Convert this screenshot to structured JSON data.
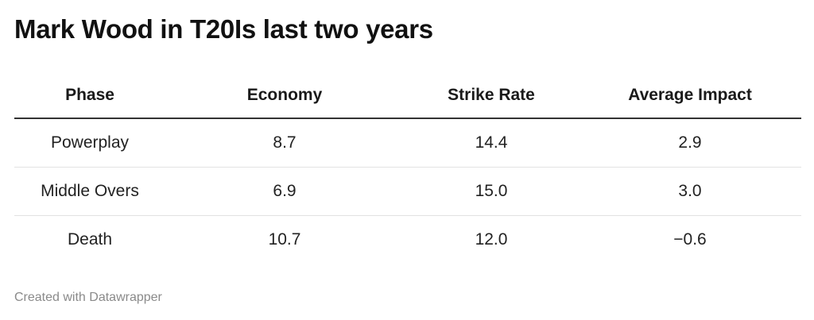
{
  "title": "Mark Wood in T20Is last two years",
  "footer": "Created with Datawrapper",
  "chart_data": {
    "type": "table",
    "title": "Mark Wood in T20Is last two years",
    "columns": [
      "Phase",
      "Economy",
      "Strike Rate",
      "Average Impact"
    ],
    "rows": [
      [
        "Powerplay",
        "8.7",
        "14.4",
        "2.9"
      ],
      [
        "Middle Overs",
        "6.9",
        "15.0",
        "3.0"
      ],
      [
        "Death",
        "10.7",
        "12.0",
        "−0.6"
      ]
    ]
  }
}
